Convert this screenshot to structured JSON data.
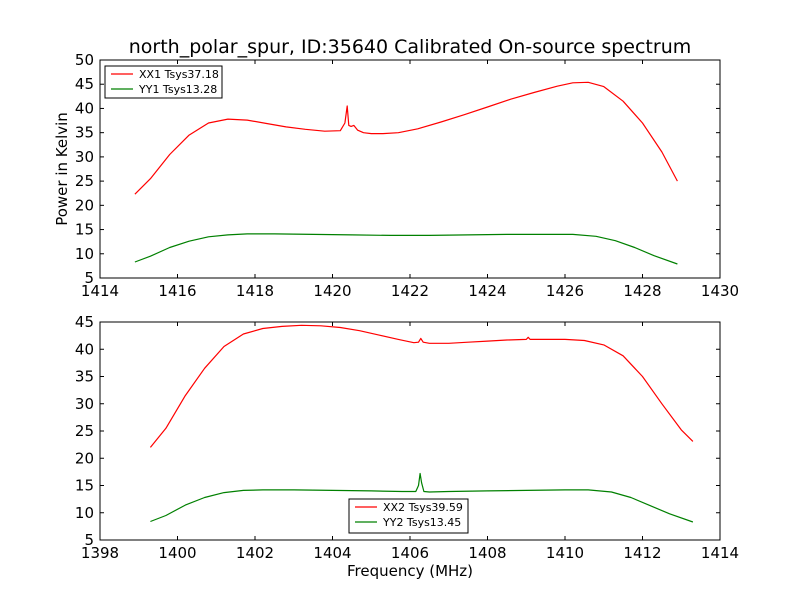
{
  "figure": {
    "title": "north_polar_spur, ID:35640 Calibrated On-source spectrum",
    "ylabel": "Power in Kelvin",
    "xlabel": "Frequency (MHz)",
    "colors": {
      "xx": "#ff0000",
      "yy": "#008000",
      "axes": "#000000",
      "background": "#ffffff"
    }
  },
  "chart_data": [
    {
      "type": "line",
      "xlim": [
        1414,
        1430
      ],
      "ylim": [
        5,
        50
      ],
      "xticks": [
        1414,
        1416,
        1418,
        1420,
        1422,
        1424,
        1426,
        1428,
        1430
      ],
      "yticks": [
        5,
        10,
        15,
        20,
        25,
        30,
        35,
        40,
        45,
        50
      ],
      "grid": false,
      "legend_position": "top-left",
      "series": [
        {
          "name": "XX1 Tsys37.18",
          "color": "#ff0000",
          "x": [
            1414.9,
            1415.3,
            1415.8,
            1416.3,
            1416.8,
            1417.3,
            1417.8,
            1418.3,
            1418.8,
            1419.3,
            1419.8,
            1420.2,
            1420.32,
            1420.38,
            1420.42,
            1420.48,
            1420.55,
            1420.65,
            1420.8,
            1421.0,
            1421.3,
            1421.7,
            1422.2,
            1422.8,
            1423.4,
            1424.0,
            1424.6,
            1425.2,
            1425.8,
            1426.2,
            1426.6,
            1427.0,
            1427.5,
            1428.0,
            1428.5,
            1428.9
          ],
          "y": [
            22.3,
            25.5,
            30.5,
            34.5,
            37.0,
            37.8,
            37.6,
            36.9,
            36.2,
            35.7,
            35.3,
            35.4,
            37.0,
            40.5,
            36.5,
            36.3,
            36.5,
            35.5,
            35.0,
            34.8,
            34.8,
            35.0,
            35.8,
            37.2,
            38.7,
            40.3,
            41.9,
            43.3,
            44.6,
            45.3,
            45.4,
            44.5,
            41.5,
            37.0,
            31.0,
            25.0
          ]
        },
        {
          "name": "YY1 Tsys13.28",
          "color": "#008000",
          "x": [
            1414.9,
            1415.3,
            1415.8,
            1416.3,
            1416.8,
            1417.3,
            1417.8,
            1418.5,
            1419.5,
            1420.5,
            1421.5,
            1422.5,
            1423.5,
            1424.5,
            1425.5,
            1426.2,
            1426.8,
            1427.3,
            1427.8,
            1428.3,
            1428.9
          ],
          "y": [
            8.3,
            9.5,
            11.3,
            12.6,
            13.5,
            13.9,
            14.1,
            14.1,
            14.0,
            13.9,
            13.8,
            13.8,
            13.9,
            14.0,
            14.0,
            14.0,
            13.6,
            12.7,
            11.3,
            9.6,
            7.9
          ]
        }
      ]
    },
    {
      "type": "line",
      "xlim": [
        1398,
        1414
      ],
      "ylim": [
        5,
        45
      ],
      "xticks": [
        1398,
        1400,
        1402,
        1404,
        1406,
        1408,
        1410,
        1412,
        1414
      ],
      "yticks": [
        5,
        10,
        15,
        20,
        25,
        30,
        35,
        40,
        45
      ],
      "grid": false,
      "legend_position": "bottom-center",
      "series": [
        {
          "name": "XX2 Tsys39.59",
          "color": "#ff0000",
          "x": [
            1399.3,
            1399.7,
            1400.2,
            1400.7,
            1401.2,
            1401.7,
            1402.2,
            1402.7,
            1403.2,
            1403.7,
            1404.2,
            1404.7,
            1405.2,
            1405.7,
            1406.1,
            1406.22,
            1406.28,
            1406.34,
            1406.5,
            1407.0,
            1407.5,
            1408.0,
            1408.5,
            1409.0,
            1409.05,
            1409.1,
            1409.5,
            1410.0,
            1410.5,
            1411.0,
            1411.5,
            1412.0,
            1412.5,
            1413.0,
            1413.3
          ],
          "y": [
            22.0,
            25.5,
            31.5,
            36.5,
            40.5,
            42.8,
            43.8,
            44.2,
            44.4,
            44.3,
            44.0,
            43.4,
            42.6,
            41.8,
            41.2,
            41.3,
            42.0,
            41.3,
            41.1,
            41.1,
            41.3,
            41.5,
            41.7,
            41.8,
            42.2,
            41.8,
            41.8,
            41.8,
            41.6,
            40.8,
            38.8,
            35.0,
            30.0,
            25.2,
            23.1
          ]
        },
        {
          "name": "YY2 Tsys13.45",
          "color": "#008000",
          "x": [
            1399.3,
            1399.7,
            1400.2,
            1400.7,
            1401.2,
            1401.7,
            1402.2,
            1403.0,
            1404.0,
            1405.0,
            1405.8,
            1406.15,
            1406.22,
            1406.26,
            1406.3,
            1406.36,
            1406.5,
            1407.0,
            1408.0,
            1409.0,
            1410.0,
            1410.6,
            1411.2,
            1411.7,
            1412.2,
            1412.7,
            1413.3
          ],
          "y": [
            8.4,
            9.5,
            11.4,
            12.8,
            13.7,
            14.1,
            14.2,
            14.2,
            14.1,
            14.0,
            13.9,
            13.9,
            15.0,
            17.2,
            15.5,
            13.9,
            13.8,
            13.9,
            14.0,
            14.1,
            14.2,
            14.2,
            13.8,
            12.8,
            11.3,
            9.8,
            8.3
          ]
        }
      ]
    }
  ]
}
